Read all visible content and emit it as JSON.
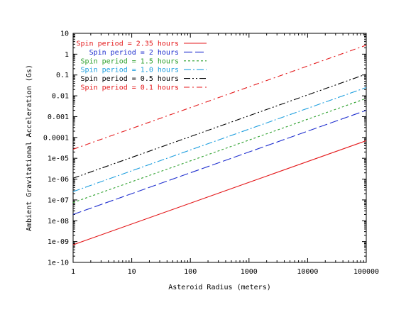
{
  "chart_data": {
    "type": "line",
    "xlabel": "Asteroid Radius (meters)",
    "ylabel": "Ambient Gravitational Acceleration (Gs)",
    "xscale": "log",
    "yscale": "log",
    "xlim": [
      1,
      100000
    ],
    "ylim": [
      1e-10,
      10
    ],
    "grid": false,
    "legend_position": "top-left",
    "x_ticks": [
      "1",
      "10",
      "100",
      "1000",
      "10000",
      "100000"
    ],
    "y_ticks": [
      "1e-10",
      "1e-09",
      "1e-08",
      "1e-07",
      "1e-06",
      "1e-05",
      "0.0001",
      "0.001",
      "0.01",
      "0.1",
      "1",
      "10"
    ],
    "x": [
      1,
      100000
    ],
    "series": [
      {
        "name": "Spin period = 2.35 hours",
        "color": "#e41a1c",
        "dash": "solid",
        "values": [
          7e-10,
          7e-05
        ]
      },
      {
        "name": "Spin period = 2 hours",
        "color": "#1f2fcf",
        "dash": "longdash",
        "values": [
          2e-08,
          0.002
        ]
      },
      {
        "name": "Spin period = 1.5 hours",
        "color": "#2ca02c",
        "dash": "dot",
        "values": [
          7.5e-08,
          0.0075
        ]
      },
      {
        "name": "Spin period = 1.0 hours",
        "color": "#1f9fdf",
        "dash": "dashdot",
        "values": [
          2.5e-07,
          0.025
        ]
      },
      {
        "name": "Spin period = 0.5 hours",
        "color": "#000000",
        "dash": "dashdotdot",
        "values": [
          1.1e-06,
          0.11
        ]
      },
      {
        "name": "Spin period = 0.1 hours",
        "color": "#e41a1c",
        "dash": "dashdotted2",
        "values": [
          2.7e-05,
          2.7
        ]
      }
    ]
  }
}
